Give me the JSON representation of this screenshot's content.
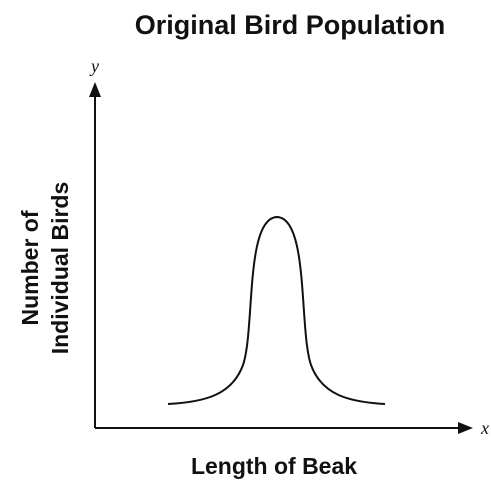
{
  "title": "Original Bird Population",
  "y_axis": {
    "letter": "y",
    "label": [
      "Number of",
      "Individual Birds"
    ]
  },
  "x_axis": {
    "letter": "x",
    "label": "Length of Beak"
  }
}
